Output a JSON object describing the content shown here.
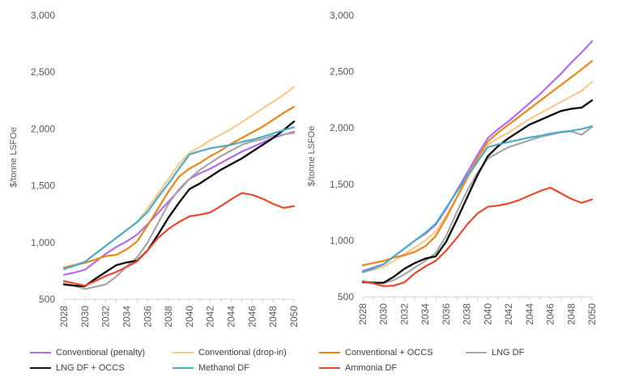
{
  "chart_data": [
    {
      "type": "line",
      "title": "",
      "xlabel": "",
      "ylabel": "$/tonne LSFOe",
      "ylim": [
        500,
        3000
      ],
      "yticks": [
        "500",
        "1,000",
        "1,500",
        "2,000",
        "2,500",
        "3,000"
      ],
      "xtick_labels": [
        "2028",
        "2030",
        "2032",
        "2034",
        "2036",
        "2038",
        "2040",
        "2042",
        "2044",
        "2046",
        "2048",
        "2050"
      ],
      "x": [
        2028,
        2029,
        2030,
        2031,
        2032,
        2033,
        2034,
        2035,
        2036,
        2037,
        2038,
        2039,
        2040,
        2041,
        2042,
        2043,
        2044,
        2045,
        2046,
        2047,
        2048,
        2049,
        2050
      ],
      "grid": false,
      "legend": "bottom",
      "series": [
        {
          "name": "Conventional (penalty)",
          "color": "#b06bf0",
          "values": [
            715,
            735,
            760,
            830,
            900,
            960,
            1010,
            1070,
            1160,
            1260,
            1360,
            1460,
            1560,
            1610,
            1650,
            1700,
            1750,
            1800,
            1840,
            1880,
            1920,
            1950,
            1975
          ]
        },
        {
          "name": "Conventional (drop-in)",
          "color": "#f9c98e",
          "values": [
            775,
            805,
            830,
            900,
            970,
            1040,
            1110,
            1180,
            1300,
            1430,
            1560,
            1690,
            1790,
            1840,
            1900,
            1950,
            2000,
            2060,
            2120,
            2180,
            2240,
            2300,
            2370
          ]
        },
        {
          "name": "Conventional + OCCS",
          "color": "#e8861a",
          "values": [
            780,
            800,
            820,
            850,
            880,
            890,
            940,
            1010,
            1150,
            1300,
            1450,
            1580,
            1650,
            1700,
            1760,
            1810,
            1870,
            1920,
            1970,
            2020,
            2080,
            2140,
            2195
          ]
        },
        {
          "name": "LNG DF",
          "color": "#a6a6a6",
          "values": [
            640,
            620,
            590,
            610,
            630,
            700,
            790,
            870,
            1000,
            1170,
            1340,
            1470,
            1560,
            1640,
            1700,
            1760,
            1810,
            1860,
            1890,
            1910,
            1940,
            1950,
            1965
          ]
        },
        {
          "name": "LNG DF + OCCS",
          "color": "#111111",
          "values": [
            630,
            620,
            615,
            680,
            740,
            800,
            825,
            840,
            930,
            1070,
            1220,
            1350,
            1470,
            1520,
            1580,
            1640,
            1690,
            1740,
            1800,
            1860,
            1920,
            1990,
            2065
          ]
        },
        {
          "name": "Methanol DF",
          "color": "#4bacc6",
          "values": [
            765,
            795,
            830,
            900,
            970,
            1040,
            1110,
            1180,
            1270,
            1400,
            1520,
            1650,
            1775,
            1805,
            1830,
            1845,
            1860,
            1885,
            1905,
            1930,
            1960,
            1990,
            2015
          ]
        },
        {
          "name": "Ammonia DF",
          "color": "#e84a2e",
          "values": [
            660,
            640,
            620,
            660,
            705,
            740,
            785,
            835,
            930,
            1040,
            1120,
            1180,
            1230,
            1245,
            1265,
            1320,
            1380,
            1435,
            1420,
            1385,
            1340,
            1305,
            1320
          ]
        }
      ]
    },
    {
      "type": "line",
      "title": "",
      "xlabel": "",
      "ylabel": "$/tonne LSFOe",
      "ylim": [
        500,
        3000
      ],
      "yticks": [
        "500",
        "1,000",
        "1,500",
        "2,000",
        "2,500",
        "3,000"
      ],
      "xtick_labels": [
        "2028",
        "2030",
        "2032",
        "2034",
        "2036",
        "2038",
        "2040",
        "2042",
        "2044",
        "2046",
        "2048",
        "2050"
      ],
      "x": [
        2028,
        2029,
        2030,
        2031,
        2032,
        2033,
        2034,
        2035,
        2036,
        2037,
        2038,
        2039,
        2040,
        2041,
        2042,
        2043,
        2044,
        2045,
        2046,
        2047,
        2048,
        2049,
        2050
      ],
      "grid": false,
      "legend": "bottom",
      "series": [
        {
          "name": "Conventional (penalty)",
          "color": "#b06bf0",
          "values": [
            730,
            760,
            790,
            860,
            930,
            1000,
            1060,
            1140,
            1280,
            1440,
            1600,
            1760,
            1910,
            1990,
            2060,
            2140,
            2220,
            2300,
            2390,
            2480,
            2580,
            2670,
            2770
          ]
        },
        {
          "name": "Conventional (drop-in)",
          "color": "#f9c98e",
          "values": [
            720,
            740,
            770,
            820,
            880,
            940,
            1000,
            1080,
            1220,
            1380,
            1540,
            1700,
            1850,
            1910,
            1960,
            2020,
            2080,
            2130,
            2180,
            2230,
            2280,
            2330,
            2410
          ]
        },
        {
          "name": "Conventional + OCCS",
          "color": "#e8861a",
          "values": [
            780,
            800,
            820,
            850,
            870,
            900,
            950,
            1040,
            1200,
            1380,
            1560,
            1730,
            1880,
            1960,
            2030,
            2100,
            2170,
            2240,
            2310,
            2380,
            2450,
            2520,
            2595
          ]
        },
        {
          "name": "LNG DF",
          "color": "#a6a6a6",
          "values": [
            640,
            625,
            620,
            650,
            700,
            760,
            820,
            890,
            1040,
            1250,
            1440,
            1600,
            1730,
            1780,
            1830,
            1860,
            1890,
            1920,
            1940,
            1960,
            1970,
            1940,
            2010
          ]
        },
        {
          "name": "LNG DF + OCCS",
          "color": "#111111",
          "values": [
            630,
            625,
            625,
            680,
            750,
            800,
            840,
            860,
            990,
            1180,
            1380,
            1580,
            1750,
            1840,
            1910,
            1970,
            2030,
            2070,
            2110,
            2150,
            2170,
            2180,
            2245
          ]
        },
        {
          "name": "Methanol DF",
          "color": "#4bacc6",
          "values": [
            720,
            750,
            790,
            860,
            930,
            1000,
            1070,
            1150,
            1290,
            1430,
            1570,
            1700,
            1830,
            1855,
            1875,
            1895,
            1915,
            1930,
            1950,
            1965,
            1975,
            1990,
            2015
          ]
        },
        {
          "name": "Ammonia DF",
          "color": "#e84a2e",
          "values": [
            635,
            620,
            595,
            600,
            630,
            710,
            770,
            820,
            910,
            1020,
            1140,
            1240,
            1300,
            1310,
            1330,
            1360,
            1400,
            1440,
            1470,
            1420,
            1370,
            1335,
            1365
          ]
        }
      ]
    }
  ],
  "legend_items": [
    {
      "label": "Conventional (penalty)",
      "color": "#b06bf0"
    },
    {
      "label": "Conventional (drop-in)",
      "color": "#f9c98e"
    },
    {
      "label": "Conventional + OCCS",
      "color": "#e8861a"
    },
    {
      "label": "LNG DF",
      "color": "#a6a6a6"
    },
    {
      "label": "LNG DF + OCCS",
      "color": "#111111"
    },
    {
      "label": "Methanol DF",
      "color": "#4bacc6"
    },
    {
      "label": "Ammonia DF",
      "color": "#e84a2e"
    }
  ]
}
